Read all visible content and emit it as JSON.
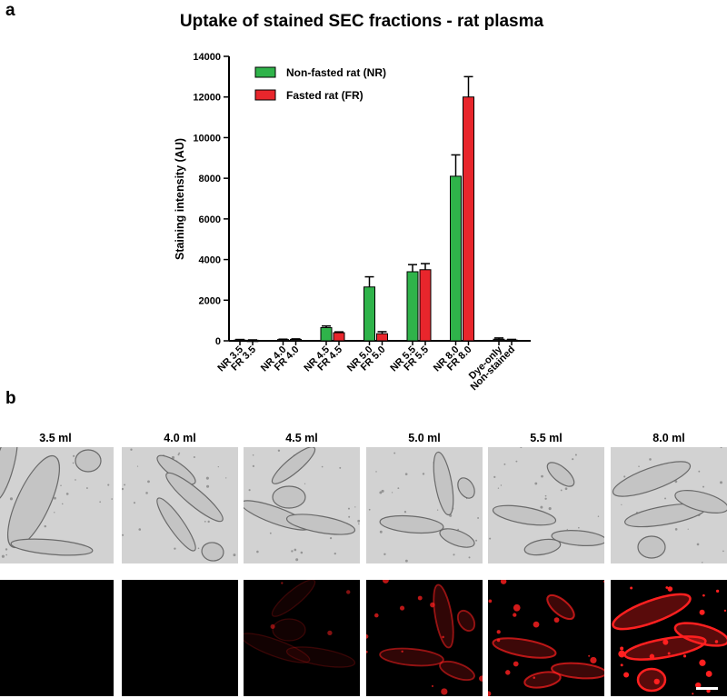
{
  "panel_a_label": "a",
  "panel_b_label": "b",
  "chart_data": {
    "type": "bar",
    "title": "Uptake of stained SEC fractions - rat plasma",
    "ylabel": "Staining intensity (AU)",
    "xlabel": "",
    "ylim": [
      0,
      14000
    ],
    "yticks": [
      0,
      2000,
      4000,
      6000,
      8000,
      10000,
      12000,
      14000
    ],
    "categories": [
      "NR 3.5",
      "FR 3.5",
      "NR 4.0",
      "FR 4.0",
      "NR 4.5",
      "FR 4.5",
      "NR 5.0",
      "FR 5.0",
      "NR 5.5",
      "FR 5.5",
      "NR 8.0",
      "FR 8.0",
      "Dye-only",
      "Non-stained"
    ],
    "values": [
      40,
      30,
      60,
      70,
      650,
      400,
      2650,
      350,
      3400,
      3500,
      8100,
      12000,
      80,
      40
    ],
    "errors": [
      25,
      15,
      20,
      25,
      80,
      40,
      500,
      100,
      350,
      300,
      1050,
      1000,
      60,
      30
    ],
    "bar_series": [
      "none",
      "none",
      "none",
      "none",
      "NR",
      "FR",
      "NR",
      "FR",
      "NR",
      "FR",
      "NR",
      "FR",
      "none",
      "none"
    ],
    "legend_position": "top-left",
    "series": [
      {
        "key": "NR",
        "name": "Non-fasted rat (NR)",
        "color": "#2fb34a"
      },
      {
        "key": "FR",
        "name": "Fasted rat (FR)",
        "color": "#e8262c"
      }
    ],
    "grid": false
  },
  "panel_b": {
    "columns": [
      "3.5 ml",
      "4.0 ml",
      "4.5 ml",
      "5.0 ml",
      "5.5 ml",
      "8.0 ml"
    ],
    "fluorescence_level": [
      0.0,
      0.0,
      0.2,
      0.55,
      0.7,
      1.0
    ],
    "fluorescence_color": "#ff2020"
  }
}
